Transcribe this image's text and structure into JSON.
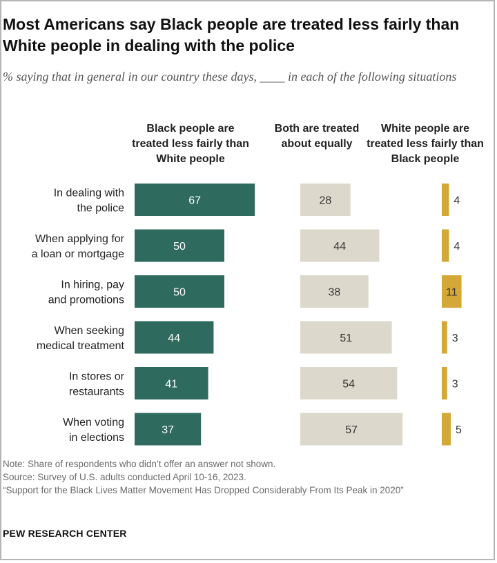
{
  "title": "Most Americans say Black people are treated less fairly than White people in dealing with the police",
  "subtitle": "% saying that in general in our country these days, ____ in each of the following situations",
  "columns": [
    "Black people are treated less fairly than White people",
    "Both are treated about equally",
    "White people are treated less fairly than Black people"
  ],
  "chart_data": {
    "type": "bar",
    "categories": [
      "In dealing with the police",
      "When applying for a loan or mortgage",
      "In hiring, pay and promotions",
      "When seeking medical treatment",
      "In stores or restaurants",
      "When voting in elections"
    ],
    "category_lines": [
      [
        "In dealing with",
        "the police"
      ],
      [
        "When applying for",
        "a loan or mortgage"
      ],
      [
        "In hiring, pay",
        "and promotions"
      ],
      [
        "When seeking",
        "medical treatment"
      ],
      [
        "In stores or",
        "restaurants"
      ],
      [
        "When voting",
        "in elections"
      ]
    ],
    "series": [
      {
        "name": "Black people are treated less fairly than White people",
        "color": "#2e6b5e",
        "values": [
          67,
          50,
          50,
          44,
          41,
          37
        ]
      },
      {
        "name": "Both are treated about equally",
        "color": "#dcd8cb",
        "values": [
          28,
          44,
          38,
          51,
          54,
          57
        ]
      },
      {
        "name": "White people are treated less fairly than Black people",
        "color": "#d4a836",
        "values": [
          4,
          4,
          11,
          3,
          3,
          5
        ]
      }
    ],
    "unit": "%"
  },
  "notes": {
    "note": "Note: Share of respondents who didn’t offer an answer not shown.",
    "source": "Source: Survey of U.S. adults conducted April 10-16, 2023.",
    "report": "“Support for the Black Lives Matter Movement Has Dropped Considerably From Its Peak in 2020”"
  },
  "brand": "PEW RESEARCH CENTER"
}
